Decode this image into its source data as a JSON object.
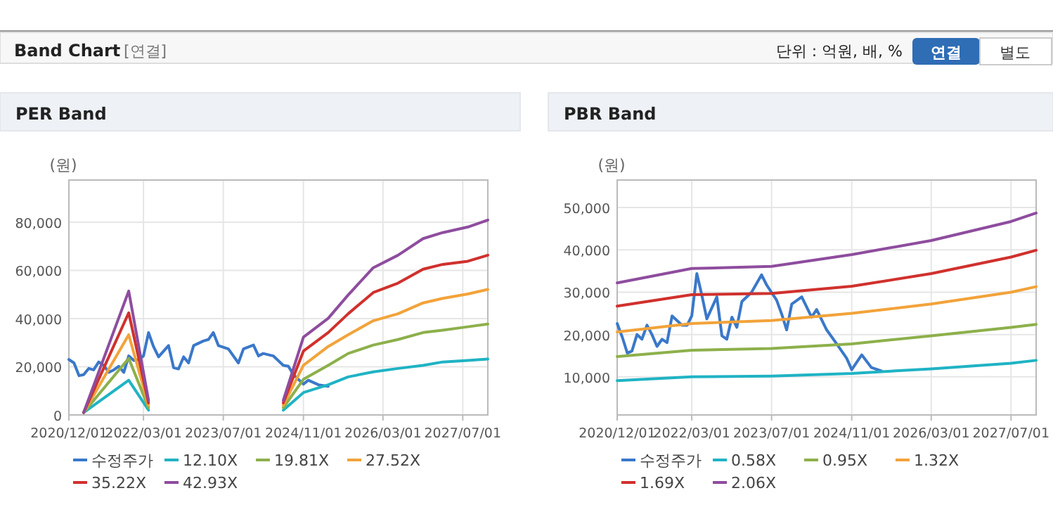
{
  "chart_data": [
    {
      "type": "other",
      "title": "Band Chart",
      "annotations": [
        "[연결]",
        "단위 : 억원, 배, %",
        "연결",
        "별도"
      ]
    },
    {
      "type": "line",
      "title": "PER Band",
      "ylabel": "(원)",
      "legend": "bottom",
      "grid": true,
      "xlim": [
        "2020-12-01",
        "2027-12-01"
      ],
      "ylim": [
        0,
        97500
      ],
      "xticks": [
        {
          "value": "2020-12-01",
          "label": "2020/12/01"
        },
        {
          "value": "2022-03-01",
          "label": "2022/03/01"
        },
        {
          "value": "2023-07-01",
          "label": "2023/07/01"
        },
        {
          "value": "2024-11-01",
          "label": "2024/11/01"
        },
        {
          "value": "2026-03-01",
          "label": "2026/03/01"
        },
        {
          "value": "2027-07-01",
          "label": "2027/07/01"
        }
      ],
      "yticks": [
        0,
        {
          "value": 20000,
          "label": "20,000"
        },
        {
          "value": 40000,
          "label": "40,000"
        },
        {
          "value": 60000,
          "label": "60,000"
        },
        {
          "value": 80000,
          "label": "80,000"
        }
      ],
      "series": [
        {
          "name": "수정주가",
          "color": "#3a78c9",
          "x": [
            "2020-12",
            "2021-01",
            "2021-02",
            "2021-03",
            "2021-04",
            "2021-05",
            "2021-06",
            "2021-07",
            "2021-08",
            "2021-09",
            "2021-10",
            "2021-11",
            "2021-12",
            "2022-01",
            "2022-02",
            "2022-03",
            "2022-04",
            "2022-05",
            "2022-06",
            "2022-08",
            "2022-09",
            "2022-10",
            "2022-11",
            "2022-12",
            "2023-01",
            "2023-03",
            "2023-04",
            "2023-05",
            "2023-06",
            "2023-08",
            "2023-10",
            "2023-11",
            "2024-01",
            "2024-02",
            "2024-03",
            "2024-05",
            "2024-07",
            "2024-08",
            "2024-09",
            "2024-11",
            "2024-12",
            "2025-02",
            "2025-04"
          ],
          "values": [
            23000,
            21600,
            16300,
            16700,
            19300,
            18700,
            22000,
            20600,
            17700,
            18700,
            20200,
            17700,
            24500,
            22600,
            23000,
            24500,
            34200,
            28400,
            24100,
            28800,
            19600,
            19100,
            24100,
            21600,
            28800,
            30700,
            31300,
            34200,
            28800,
            27400,
            21600,
            27400,
            29000,
            24500,
            25500,
            24500,
            20600,
            20200,
            16700,
            12800,
            14400,
            12500,
            11900
          ]
        },
        {
          "name": "12.10X",
          "color": "#1fb3c4",
          "x": [
            "2021-03",
            "2021-12",
            "2022-04",
            "2023-06",
            "2024-07",
            "2024-11",
            "2025-04",
            "2025-08",
            "2026-01",
            "2026-06",
            "2026-11",
            "2027-03",
            "2027-08",
            "2027-12"
          ],
          "values": [
            1000,
            14400,
            2000,
            null,
            2000,
            9300,
            12500,
            15800,
            17900,
            19300,
            20600,
            22000,
            22600,
            23200
          ]
        },
        {
          "name": "19.81X",
          "color": "#8db04b",
          "x": [
            "2021-03",
            "2021-12",
            "2022-04",
            "2023-06",
            "2024-07",
            "2024-11",
            "2025-04",
            "2025-08",
            "2026-01",
            "2026-06",
            "2026-11",
            "2027-03",
            "2027-08",
            "2027-12"
          ],
          "values": [
            1000,
            23500,
            3000,
            null,
            3000,
            14800,
            20600,
            25500,
            29000,
            31300,
            34200,
            35200,
            36600,
            37700
          ]
        },
        {
          "name": "27.52X",
          "color": "#f2a33a",
          "x": [
            "2021-03",
            "2021-12",
            "2022-04",
            "2023-06",
            "2024-07",
            "2024-11",
            "2025-04",
            "2025-08",
            "2026-01",
            "2026-06",
            "2026-11",
            "2027-03",
            "2027-08",
            "2027-12"
          ],
          "values": [
            1000,
            33300,
            4000,
            null,
            4000,
            20600,
            28400,
            33300,
            39100,
            42000,
            46500,
            48400,
            50200,
            52100
          ]
        },
        {
          "name": "35.22X",
          "color": "#d0312d",
          "x": [
            "2021-03",
            "2021-12",
            "2022-04",
            "2023-06",
            "2024-07",
            "2024-11",
            "2025-04",
            "2025-08",
            "2026-01",
            "2026-06",
            "2026-11",
            "2027-03",
            "2027-08",
            "2027-12"
          ],
          "values": [
            1000,
            42400,
            5000,
            null,
            5000,
            26500,
            34200,
            42000,
            50800,
            54700,
            60500,
            62500,
            63800,
            66300
          ]
        },
        {
          "name": "42.93X",
          "color": "#8e4d9e",
          "x": [
            "2021-03",
            "2021-12",
            "2022-04",
            "2023-06",
            "2024-07",
            "2024-11",
            "2025-04",
            "2025-08",
            "2026-01",
            "2026-06",
            "2026-11",
            "2027-03",
            "2027-08",
            "2027-12"
          ],
          "values": [
            1000,
            51400,
            6000,
            null,
            6000,
            32300,
            40100,
            49800,
            61100,
            66300,
            73200,
            75700,
            78000,
            80900
          ]
        }
      ]
    },
    {
      "type": "line",
      "title": "PBR Band",
      "ylabel": "(원)",
      "legend": "bottom",
      "grid": true,
      "xlim": [
        "2020-12-01",
        "2027-12-01"
      ],
      "ylim": [
        1000,
        56500
      ],
      "xticks": [
        {
          "value": "2020-12-01",
          "label": "2020/12/01"
        },
        {
          "value": "2022-03-01",
          "label": "2022/03/01"
        },
        {
          "value": "2023-07-01",
          "label": "2023/07/01"
        },
        {
          "value": "2024-11-01",
          "label": "2024/11/01"
        },
        {
          "value": "2026-03-01",
          "label": "2026/03/01"
        },
        {
          "value": "2027-07-01",
          "label": "2027/07/01"
        }
      ],
      "yticks": [
        {
          "value": 10000,
          "label": "10,000"
        },
        {
          "value": 20000,
          "label": "20,000"
        },
        {
          "value": 30000,
          "label": "30,000"
        },
        {
          "value": 40000,
          "label": "40,000"
        },
        {
          "value": 50000,
          "label": "50,000"
        }
      ],
      "series": [
        {
          "name": "수정주가",
          "color": "#3a78c9",
          "x": [
            "2020-12",
            "2021-01",
            "2021-02",
            "2021-03",
            "2021-04",
            "2021-05",
            "2021-06",
            "2021-07",
            "2021-08",
            "2021-09",
            "2021-10",
            "2021-11",
            "2022-01",
            "2022-02",
            "2022-03",
            "2022-04",
            "2022-05",
            "2022-06",
            "2022-08",
            "2022-09",
            "2022-10",
            "2022-11",
            "2022-12",
            "2023-01",
            "2023-03",
            "2023-05",
            "2023-06",
            "2023-08",
            "2023-09",
            "2023-10",
            "2023-11",
            "2024-01",
            "2024-03",
            "2024-04",
            "2024-06",
            "2024-08",
            "2024-10",
            "2024-11",
            "2025-01",
            "2025-03",
            "2025-05"
          ],
          "values": [
            22600,
            19400,
            15600,
            16100,
            20000,
            18900,
            22200,
            20000,
            17200,
            18900,
            18100,
            24400,
            22200,
            22200,
            24400,
            34400,
            29400,
            23700,
            28900,
            19700,
            18900,
            24100,
            21700,
            27800,
            30000,
            34100,
            31700,
            28100,
            24800,
            21100,
            27200,
            28900,
            24100,
            25900,
            21100,
            17800,
            14400,
            11700,
            15200,
            12200,
            11400
          ]
        },
        {
          "name": "0.58X",
          "color": "#1fb3c4",
          "x": [
            "2020-12",
            "2022-03",
            "2023-07",
            "2024-11",
            "2026-03",
            "2027-07",
            "2027-12"
          ],
          "values": [
            9100,
            10000,
            10200,
            10800,
            11900,
            13200,
            13900
          ]
        },
        {
          "name": "0.95X",
          "color": "#8db04b",
          "x": [
            "2020-12",
            "2022-03",
            "2023-07",
            "2024-11",
            "2026-03",
            "2027-07",
            "2027-12"
          ],
          "values": [
            14800,
            16300,
            16700,
            17800,
            19700,
            21700,
            22400
          ]
        },
        {
          "name": "1.32X",
          "color": "#f2a33a",
          "x": [
            "2020-12",
            "2022-03",
            "2023-07",
            "2024-11",
            "2026-03",
            "2027-07",
            "2027-12"
          ],
          "values": [
            20600,
            22600,
            23300,
            25000,
            27200,
            30000,
            31300
          ]
        },
        {
          "name": "1.69X",
          "color": "#d0312d",
          "x": [
            "2020-12",
            "2022-03",
            "2023-07",
            "2024-11",
            "2026-03",
            "2027-07",
            "2027-12"
          ],
          "values": [
            26700,
            29400,
            29700,
            31400,
            34400,
            38300,
            39900
          ]
        },
        {
          "name": "2.06X",
          "color": "#8e4d9e",
          "x": [
            "2020-12",
            "2022-03",
            "2023-07",
            "2024-11",
            "2026-03",
            "2027-07",
            "2027-12"
          ],
          "values": [
            32200,
            35600,
            36100,
            38900,
            42200,
            46700,
            48700
          ]
        }
      ]
    }
  ]
}
